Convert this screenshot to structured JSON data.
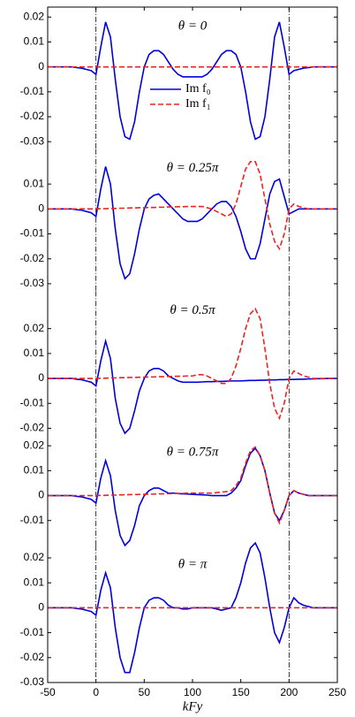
{
  "chart_data": [
    {
      "type": "line",
      "title": "θ = 0",
      "legend": true,
      "ylim": [
        -0.033,
        0.024
      ],
      "yticks": [
        0.02,
        0.01,
        0,
        -0.01,
        -0.02,
        -0.03
      ],
      "xlim": [
        -50,
        250
      ],
      "vlines": [
        0,
        200
      ],
      "x": [
        -50,
        -45,
        -40,
        -35,
        -30,
        -25,
        -20,
        -15,
        -10,
        -5,
        0,
        5,
        10,
        15,
        20,
        25,
        30,
        35,
        40,
        45,
        50,
        55,
        60,
        65,
        70,
        75,
        80,
        85,
        90,
        95,
        100,
        105,
        110,
        115,
        120,
        125,
        130,
        135,
        140,
        145,
        150,
        155,
        160,
        165,
        170,
        175,
        180,
        185,
        190,
        195,
        200,
        205,
        210,
        215,
        220,
        225,
        230,
        235,
        240,
        245,
        250
      ],
      "series": [
        {
          "name": "Im f₀",
          "color": "#0000dd",
          "dash": false,
          "values": [
            0,
            0,
            0,
            0,
            0,
            0,
            -0.0003,
            -0.0005,
            -0.001,
            -0.0015,
            -0.003,
            0.008,
            0.018,
            0.012,
            -0.005,
            -0.02,
            -0.028,
            -0.029,
            -0.022,
            -0.01,
            0,
            0.005,
            0.0065,
            0.0065,
            0.005,
            0.002,
            -0.001,
            -0.003,
            -0.004,
            -0.004,
            -0.004,
            -0.004,
            -0.004,
            -0.003,
            -0.001,
            0.002,
            0.005,
            0.0065,
            0.0065,
            0.005,
            0,
            -0.01,
            -0.022,
            -0.029,
            -0.028,
            -0.02,
            -0.005,
            0.012,
            0.018,
            0.008,
            -0.003,
            -0.0015,
            -0.001,
            -0.0005,
            -0.0003,
            0,
            0,
            0,
            0,
            0,
            0
          ]
        },
        {
          "name": "Im f₁",
          "color": "#ee2222",
          "dash": true,
          "values": [
            0,
            0,
            0,
            0,
            0,
            0,
            0,
            0,
            0,
            0,
            0,
            0,
            0,
            0,
            0,
            0,
            0,
            0,
            0,
            0,
            0,
            0,
            0,
            0,
            0,
            0,
            0,
            0,
            0,
            0,
            0,
            0,
            0,
            0,
            0,
            0,
            0,
            0,
            0,
            0,
            0,
            0,
            0,
            0,
            0,
            0,
            0,
            0,
            0,
            0,
            0,
            0,
            0,
            0,
            0,
            0,
            0,
            0,
            0,
            0,
            0
          ]
        }
      ]
    },
    {
      "type": "line",
      "title": "θ = 0.25π",
      "legend": false,
      "ylim": [
        -0.033,
        0.024
      ],
      "yticks": [
        0.01,
        0,
        -0.01,
        -0.02,
        -0.03
      ],
      "xlim": [
        -50,
        250
      ],
      "vlines": [
        0,
        200
      ],
      "x": [
        -50,
        -45,
        -40,
        -35,
        -30,
        -25,
        -20,
        -15,
        -10,
        -5,
        0,
        5,
        10,
        15,
        20,
        25,
        30,
        35,
        40,
        45,
        50,
        55,
        60,
        65,
        70,
        75,
        80,
        85,
        90,
        95,
        100,
        105,
        110,
        115,
        120,
        125,
        130,
        135,
        140,
        145,
        150,
        155,
        160,
        165,
        170,
        175,
        180,
        185,
        190,
        195,
        200,
        205,
        210,
        215,
        220,
        225,
        230,
        235,
        240,
        245,
        250
      ],
      "series": [
        {
          "name": "Im f₀",
          "color": "#0000dd",
          "dash": false,
          "values": [
            0,
            0,
            0,
            0,
            0,
            0,
            -0.0003,
            -0.0005,
            -0.001,
            -0.0015,
            -0.003,
            0.008,
            0.017,
            0.01,
            -0.008,
            -0.022,
            -0.028,
            -0.026,
            -0.018,
            -0.008,
            0,
            0.004,
            0.0055,
            0.006,
            0.004,
            0.002,
            0,
            -0.002,
            -0.004,
            -0.005,
            -0.005,
            -0.005,
            -0.004,
            -0.002,
            0,
            0.002,
            0.003,
            0.003,
            0.001,
            -0.003,
            -0.009,
            -0.016,
            -0.02,
            -0.02,
            -0.014,
            -0.004,
            0.006,
            0.011,
            0.012,
            0.005,
            -0.002,
            -0.001,
            0,
            0,
            0,
            0,
            0,
            0,
            0,
            0,
            0
          ]
        },
        {
          "name": "Im f₁",
          "color": "#ee2222",
          "dash": true,
          "values": [
            0,
            0,
            0,
            0,
            0,
            0,
            0,
            0,
            0,
            0,
            0,
            0.0001,
            0.0001,
            0.0002,
            0.0002,
            0.0003,
            0.0003,
            0.0004,
            0.0004,
            0.0005,
            0.0005,
            0.0006,
            0.0006,
            0.0007,
            0.0007,
            0.0008,
            0.0008,
            0.0009,
            0.0009,
            0.001,
            0.001,
            0.001,
            0.001,
            0.0005,
            0,
            -0.001,
            -0.002,
            -0.003,
            -0.002,
            0.002,
            0.009,
            0.016,
            0.019,
            0.019,
            0.014,
            0.004,
            -0.006,
            -0.013,
            -0.016,
            -0.01,
            0,
            0.002,
            0.001,
            0.0005,
            0,
            0,
            0,
            0,
            0,
            0,
            0
          ]
        }
      ]
    },
    {
      "type": "line",
      "title": "θ = 0.5π",
      "legend": false,
      "ylim": [
        -0.022,
        0.035
      ],
      "yticks": [
        0.02,
        0.01,
        0,
        -0.01,
        -0.02
      ],
      "xlim": [
        -50,
        250
      ],
      "vlines": [
        0,
        200
      ],
      "x": [
        -50,
        -45,
        -40,
        -35,
        -30,
        -25,
        -20,
        -15,
        -10,
        -5,
        0,
        5,
        10,
        15,
        20,
        25,
        30,
        35,
        40,
        45,
        50,
        55,
        60,
        65,
        70,
        75,
        80,
        85,
        90,
        95,
        100,
        105,
        110,
        115,
        120,
        125,
        130,
        135,
        140,
        145,
        150,
        155,
        160,
        165,
        170,
        175,
        180,
        185,
        190,
        195,
        200,
        205,
        210,
        215,
        220,
        225,
        230,
        235,
        240,
        245,
        250
      ],
      "series": [
        {
          "name": "Im f₀",
          "color": "#0000dd",
          "dash": false,
          "values": [
            0,
            0,
            0,
            0,
            0,
            0,
            -0.0003,
            -0.0005,
            -0.001,
            -0.0015,
            -0.003,
            0.007,
            0.015,
            0.008,
            -0.008,
            -0.018,
            -0.022,
            -0.02,
            -0.013,
            -0.005,
            0,
            0.003,
            0.004,
            0.004,
            0.003,
            0.001,
            0,
            -0.001,
            -0.0015,
            -0.0015,
            -0.0015,
            -0.0015,
            -0.0014,
            -0.0013,
            -0.0013,
            -0.0012,
            -0.0012,
            -0.0011,
            -0.001,
            -0.001,
            -0.001,
            -0.0009,
            -0.0008,
            -0.0008,
            -0.0007,
            -0.0007,
            -0.0006,
            -0.0006,
            -0.0005,
            -0.0005,
            -0.0004,
            -0.0004,
            -0.0003,
            -0.0003,
            -0.0002,
            -0.0002,
            -0.0001,
            -0.0001,
            0,
            0,
            0
          ]
        },
        {
          "name": "Im f₁",
          "color": "#ee2222",
          "dash": true,
          "values": [
            0,
            0,
            0,
            0,
            0,
            0,
            0,
            0,
            0,
            0,
            0,
            0.0001,
            0.0001,
            0.0002,
            0.0002,
            0.0003,
            0.0003,
            0.0004,
            0.0004,
            0.0005,
            0.0005,
            0.0006,
            0.0006,
            0.0007,
            0.0007,
            0.0008,
            0.0008,
            0.0009,
            0.0009,
            0.001,
            0.001,
            0.0015,
            0.0015,
            0.001,
            0,
            -0.001,
            -0.002,
            -0.002,
            0,
            0.005,
            0.012,
            0.02,
            0.026,
            0.028,
            0.024,
            0.012,
            -0.002,
            -0.012,
            -0.016,
            -0.01,
            0,
            0.003,
            0.002,
            0.001,
            0.0005,
            0,
            0,
            0,
            0,
            0,
            0
          ]
        }
      ]
    },
    {
      "type": "line",
      "title": "θ = 0.75π",
      "legend": false,
      "ylim": [
        -0.02,
        0.025
      ],
      "yticks": [
        0.02,
        0.01,
        0,
        -0.01
      ],
      "xlim": [
        -50,
        250
      ],
      "vlines": [
        0,
        200
      ],
      "x": [
        -50,
        -45,
        -40,
        -35,
        -30,
        -25,
        -20,
        -15,
        -10,
        -5,
        0,
        5,
        10,
        15,
        20,
        25,
        30,
        35,
        40,
        45,
        50,
        55,
        60,
        65,
        70,
        75,
        80,
        85,
        90,
        95,
        100,
        105,
        110,
        115,
        120,
        125,
        130,
        135,
        140,
        145,
        150,
        155,
        160,
        165,
        170,
        175,
        180,
        185,
        190,
        195,
        200,
        205,
        210,
        215,
        220,
        225,
        230,
        235,
        240,
        245,
        250
      ],
      "series": [
        {
          "name": "Im f₀",
          "color": "#0000dd",
          "dash": false,
          "values": [
            0,
            0,
            0,
            0,
            0,
            0,
            -0.0003,
            -0.0005,
            -0.001,
            -0.0015,
            -0.003,
            0.007,
            0.014,
            0.008,
            -0.006,
            -0.016,
            -0.02,
            -0.018,
            -0.012,
            -0.004,
            0,
            0.002,
            0.003,
            0.003,
            0.002,
            0.001,
            0.001,
            0.0008,
            0.0007,
            0.0006,
            0.0005,
            0.0004,
            0.0003,
            0.0002,
            0,
            0,
            0,
            0,
            0.001,
            0.003,
            0.006,
            0.012,
            0.017,
            0.019,
            0.016,
            0.01,
            0.001,
            -0.007,
            -0.01,
            -0.006,
            0,
            0.002,
            0.001,
            0.0005,
            0,
            0,
            0,
            0,
            0,
            0,
            0
          ]
        },
        {
          "name": "Im f₁",
          "color": "#ee2222",
          "dash": true,
          "values": [
            0,
            0,
            0,
            0,
            0,
            0,
            0,
            0,
            0,
            0,
            0,
            0.0001,
            0.0001,
            0.0002,
            0.0002,
            0.0003,
            0.0003,
            0.0004,
            0.0004,
            0.0005,
            0.0005,
            0.0006,
            0.0006,
            0.0007,
            0.0007,
            0.0008,
            0.0008,
            0.0009,
            0.0009,
            0.001,
            0.001,
            0.001,
            0.001,
            0.001,
            0.001,
            0.0012,
            0.0014,
            0.0016,
            0.002,
            0.004,
            0.007,
            0.013,
            0.018,
            0.0195,
            0.016,
            0.01,
            0.001,
            -0.007,
            -0.011,
            -0.006,
            0,
            0.002,
            0.001,
            0.0005,
            0,
            0,
            0,
            0,
            0,
            0,
            0
          ]
        }
      ]
    },
    {
      "type": "line",
      "title": "θ = π",
      "legend": false,
      "ylim": [
        -0.03,
        0.025
      ],
      "yticks": [
        0.02,
        0.01,
        0,
        -0.01,
        -0.02,
        -0.03
      ],
      "xlim": [
        -50,
        250
      ],
      "xticks": [
        -50,
        0,
        50,
        100,
        150,
        200,
        250
      ],
      "xlabel": "kFy",
      "vlines": [
        0,
        200
      ],
      "x": [
        -50,
        -45,
        -40,
        -35,
        -30,
        -25,
        -20,
        -15,
        -10,
        -5,
        0,
        5,
        10,
        15,
        20,
        25,
        30,
        35,
        40,
        45,
        50,
        55,
        60,
        65,
        70,
        75,
        80,
        85,
        90,
        95,
        100,
        105,
        110,
        115,
        120,
        125,
        130,
        135,
        140,
        145,
        150,
        155,
        160,
        165,
        170,
        175,
        180,
        185,
        190,
        195,
        200,
        205,
        210,
        215,
        220,
        225,
        230,
        235,
        240,
        245,
        250
      ],
      "series": [
        {
          "name": "Im f₀",
          "color": "#0000dd",
          "dash": false,
          "values": [
            0,
            0,
            0,
            0,
            0,
            0,
            -0.0003,
            -0.0005,
            -0.001,
            -0.0015,
            -0.003,
            0.007,
            0.014,
            0.008,
            -0.008,
            -0.02,
            -0.026,
            -0.026,
            -0.018,
            -0.008,
            0,
            0.003,
            0.004,
            0.004,
            0.003,
            0.001,
            0,
            0,
            -0.0005,
            -0.0005,
            0,
            0,
            0,
            0,
            0,
            -0.0005,
            -0.001,
            -0.0005,
            0,
            0.004,
            0.01,
            0.018,
            0.024,
            0.026,
            0.022,
            0.012,
            0,
            -0.01,
            -0.014,
            -0.008,
            0,
            0.004,
            0.002,
            0.001,
            0.0005,
            0,
            0,
            0,
            0,
            0,
            0
          ]
        },
        {
          "name": "Im f₁",
          "color": "#ee2222",
          "dash": true,
          "values": [
            0,
            0,
            0,
            0,
            0,
            0,
            0,
            0,
            0,
            0,
            0,
            0,
            0,
            0,
            0,
            0,
            0,
            0,
            0,
            0,
            0,
            0,
            0,
            0,
            0,
            0,
            0,
            0,
            0,
            0,
            0,
            0,
            0,
            0,
            0,
            0,
            0,
            0,
            0,
            0,
            0,
            0,
            0,
            0,
            0,
            0,
            0,
            0,
            0,
            0,
            0,
            0,
            0,
            0,
            0,
            0,
            0,
            0,
            0,
            0,
            0
          ]
        }
      ]
    }
  ]
}
